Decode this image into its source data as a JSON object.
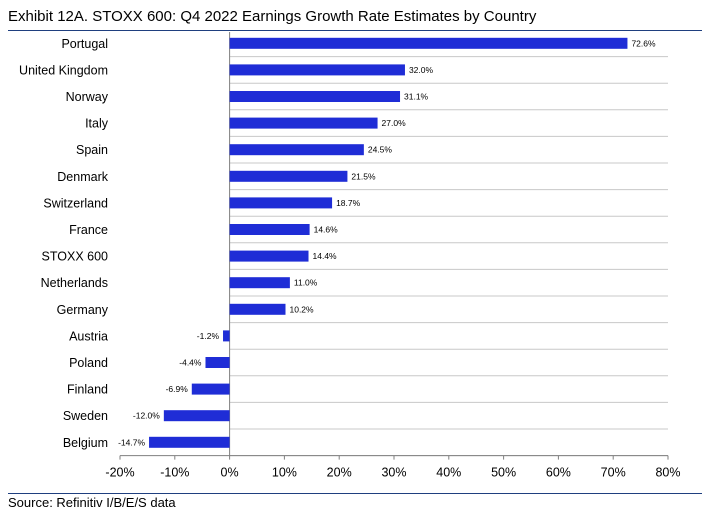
{
  "exhibit_title": "Exhibit 12A.  STOXX 600: Q4 2022 Earnings Growth Rate Estimates by Country",
  "source": "Source: Refinitiv I/B/E/S data",
  "colors": {
    "bar": "#1f2dd6",
    "grid": "#c8c8c8",
    "axis": "#7f7f7f",
    "rule": "#1f3f7f"
  },
  "chart_data": {
    "type": "bar",
    "orientation": "horizontal",
    "title": "Exhibit 12A.  STOXX 600: Q4 2022 Earnings Growth Rate Estimates by Country",
    "categories": [
      "Portugal",
      "United Kingdom",
      "Norway",
      "Italy",
      "Spain",
      "Denmark",
      "Switzerland",
      "France",
      "STOXX 600",
      "Netherlands",
      "Germany",
      "Austria",
      "Poland",
      "Finland",
      "Sweden",
      "Belgium"
    ],
    "values": [
      72.6,
      32.0,
      31.1,
      27.0,
      24.5,
      21.5,
      18.7,
      14.6,
      14.4,
      11.0,
      10.2,
      -1.2,
      -4.4,
      -6.9,
      -12.0,
      -14.7
    ],
    "value_labels": [
      "72.6%",
      "32.0%",
      "31.1%",
      "27.0%",
      "24.5%",
      "21.5%",
      "18.7%",
      "14.6%",
      "14.4%",
      "11.0%",
      "10.2%",
      "-1.2%",
      "-4.4%",
      "-6.9%",
      "-12.0%",
      "-14.7%"
    ],
    "xlim": [
      -20,
      80
    ],
    "xticks": [
      -20,
      -10,
      0,
      10,
      20,
      30,
      40,
      50,
      60,
      70,
      80
    ],
    "xtick_labels": [
      "-20%",
      "-10%",
      "0%",
      "10%",
      "20%",
      "30%",
      "40%",
      "50%",
      "60%",
      "70%",
      "80%"
    ],
    "xlabel": "",
    "ylabel": "",
    "grid": "horizontal"
  }
}
